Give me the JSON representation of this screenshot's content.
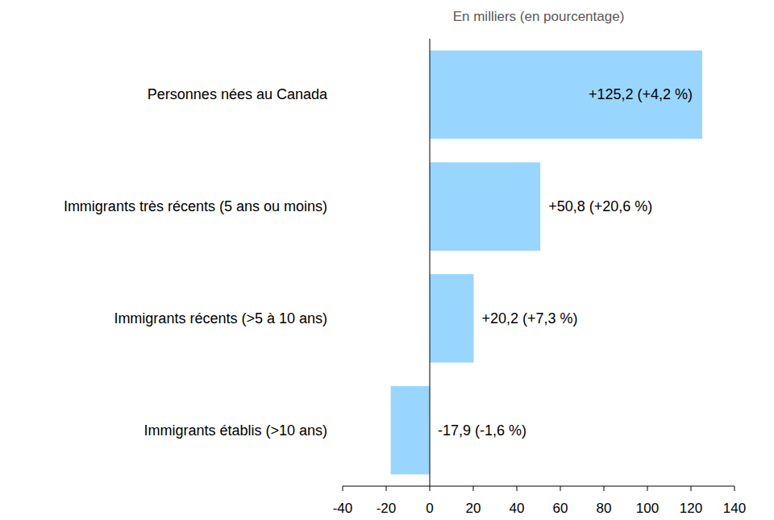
{
  "chart_data": {
    "type": "bar",
    "orientation": "horizontal",
    "xlabel": "En milliers (en pourcentage)",
    "categories": [
      "Personnes nées au Canada",
      "Immigrants très récents (5 ans ou moins)",
      "Immigrants récents (>5 à 10 ans)",
      "Immigrants établis (>10 ans)"
    ],
    "values": [
      125.2,
      50.8,
      20.2,
      -17.9
    ],
    "value_labels": [
      "+125,2 (+4,2 %)",
      "+50,8 (+20,6 %)",
      "+20,2 (+7,3 %)",
      "-17,9 (-1,6 %)"
    ],
    "data_labels": true,
    "color": "#99d6ff",
    "xlim": [
      -40,
      140
    ],
    "xticks": [
      -40,
      -20,
      0,
      20,
      40,
      60,
      80,
      100,
      120,
      140
    ],
    "grid": false
  }
}
